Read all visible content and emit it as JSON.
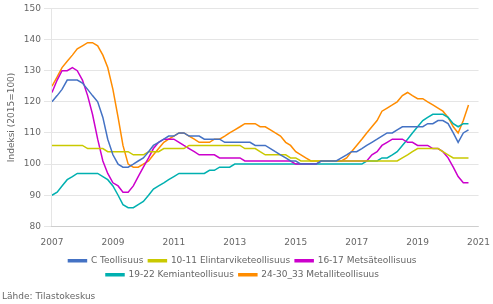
{
  "chart_data": {
    "type": "line",
    "y_label": "Indeksi (2015=100)",
    "source": "Lähde: Tilastokeskus",
    "x": [
      2007.0,
      2007.17,
      2007.33,
      2007.5,
      2007.67,
      2007.83,
      2008.0,
      2008.17,
      2008.33,
      2008.5,
      2008.67,
      2008.83,
      2009.0,
      2009.17,
      2009.33,
      2009.5,
      2009.67,
      2009.83,
      2010.0,
      2010.17,
      2010.33,
      2010.5,
      2010.67,
      2010.83,
      2011.0,
      2011.17,
      2011.33,
      2011.5,
      2011.67,
      2011.83,
      2012.0,
      2012.17,
      2012.33,
      2012.5,
      2012.67,
      2012.83,
      2013.0,
      2013.17,
      2013.33,
      2013.5,
      2013.67,
      2013.83,
      2014.0,
      2014.17,
      2014.33,
      2014.5,
      2014.67,
      2014.83,
      2015.0,
      2015.17,
      2015.33,
      2015.5,
      2015.67,
      2015.83,
      2016.0,
      2016.17,
      2016.33,
      2016.5,
      2016.67,
      2016.83,
      2017.0,
      2017.17,
      2017.33,
      2017.5,
      2017.67,
      2017.83,
      2018.0,
      2018.17,
      2018.33,
      2018.5,
      2018.67,
      2018.83,
      2019.0,
      2019.17,
      2019.33,
      2019.5,
      2019.67,
      2019.83,
      2020.0,
      2020.17,
      2020.33,
      2020.5,
      2020.67
    ],
    "series": [
      {
        "name": "C Teollisuus",
        "color": "#4472C4",
        "values": [
          120,
          122,
          124,
          127,
          127,
          127,
          126,
          124,
          122,
          120,
          115,
          108,
          103,
          100,
          99,
          99,
          100,
          101,
          102,
          104,
          106,
          107,
          108,
          109,
          109,
          110,
          110,
          109,
          109,
          109,
          108,
          108,
          108,
          108,
          107,
          107,
          107,
          107,
          107,
          107,
          106,
          106,
          106,
          105,
          104,
          103,
          102,
          101,
          101,
          100,
          100,
          100,
          100,
          101,
          101,
          101,
          101,
          102,
          103,
          104,
          104,
          105,
          106,
          107,
          108,
          109,
          110,
          110,
          111,
          112,
          112,
          112,
          112,
          112,
          113,
          113,
          114,
          114,
          113,
          110,
          107,
          110,
          111
        ]
      },
      {
        "name": "10-11 Elintarviketeollisuus",
        "color": "#C9C900",
        "values": [
          106,
          106,
          106,
          106,
          106,
          106,
          106,
          105,
          105,
          105,
          105,
          104,
          104,
          104,
          104,
          104,
          103,
          103,
          103,
          104,
          104,
          104,
          105,
          105,
          105,
          105,
          105,
          106,
          106,
          106,
          106,
          106,
          106,
          106,
          106,
          106,
          106,
          106,
          105,
          105,
          105,
          104,
          103,
          103,
          103,
          103,
          103,
          102,
          102,
          101,
          101,
          101,
          101,
          101,
          101,
          101,
          101,
          101,
          101,
          101,
          101,
          101,
          101,
          101,
          101,
          101,
          101,
          101,
          101,
          102,
          103,
          104,
          105,
          105,
          105,
          105,
          105,
          104,
          103,
          102,
          102,
          102,
          102
        ]
      },
      {
        "name": "16-17 Metsäteollisuus",
        "color": "#CC00CC",
        "values": [
          123,
          127,
          130,
          130,
          131,
          130,
          127,
          122,
          116,
          108,
          101,
          97,
          94,
          93,
          91,
          91,
          93,
          96,
          99,
          102,
          105,
          107,
          108,
          108,
          108,
          107,
          106,
          105,
          104,
          103,
          103,
          103,
          103,
          102,
          102,
          102,
          102,
          102,
          101,
          101,
          101,
          101,
          101,
          101,
          101,
          101,
          101,
          101,
          100,
          100,
          100,
          100,
          100,
          101,
          101,
          101,
          101,
          101,
          101,
          101,
          101,
          101,
          101,
          103,
          104,
          106,
          107,
          108,
          108,
          108,
          107,
          107,
          106,
          106,
          106,
          105,
          105,
          104,
          102,
          99,
          96,
          94,
          94
        ]
      },
      {
        "name": "19-22 Kemianteollisuus",
        "color": "#00B0B0",
        "values": [
          90,
          91,
          93,
          95,
          96,
          97,
          97,
          97,
          97,
          97,
          96,
          95,
          93,
          90,
          87,
          86,
          86,
          87,
          88,
          90,
          92,
          93,
          94,
          95,
          96,
          97,
          97,
          97,
          97,
          97,
          97,
          98,
          98,
          99,
          99,
          99,
          100,
          100,
          100,
          100,
          100,
          100,
          100,
          100,
          100,
          100,
          100,
          100,
          100,
          100,
          100,
          100,
          100,
          100,
          100,
          100,
          100,
          100,
          100,
          100,
          100,
          100,
          101,
          101,
          101,
          102,
          102,
          103,
          104,
          106,
          108,
          110,
          112,
          114,
          115,
          116,
          116,
          116,
          115,
          113,
          112,
          113,
          113
        ]
      },
      {
        "name": "24-30_33 Metalliteollisuus",
        "color": "#FF8C00",
        "values": [
          125,
          128,
          131,
          133,
          135,
          137,
          138,
          139,
          139,
          138,
          135,
          131,
          124,
          115,
          106,
          100,
          99,
          99,
          100,
          101,
          103,
          105,
          107,
          108,
          109,
          110,
          110,
          109,
          108,
          107,
          107,
          107,
          108,
          108,
          109,
          110,
          111,
          112,
          113,
          113,
          113,
          112,
          112,
          111,
          110,
          109,
          107,
          106,
          104,
          103,
          102,
          101,
          101,
          101,
          101,
          101,
          101,
          101,
          102,
          104,
          106,
          108,
          110,
          112,
          114,
          117,
          118,
          119,
          120,
          122,
          123,
          122,
          121,
          121,
          120,
          119,
          118,
          117,
          115,
          112,
          110,
          114,
          119
        ]
      }
    ],
    "xlim": [
      2007,
      2021
    ],
    "xticks": [
      2007,
      2009,
      2011,
      2013,
      2015,
      2017,
      2019,
      2021
    ],
    "ylim": [
      80,
      150
    ],
    "yticks": [
      80,
      90,
      100,
      110,
      120,
      130,
      140,
      150
    ],
    "grid": "y",
    "legend": "bottom"
  }
}
